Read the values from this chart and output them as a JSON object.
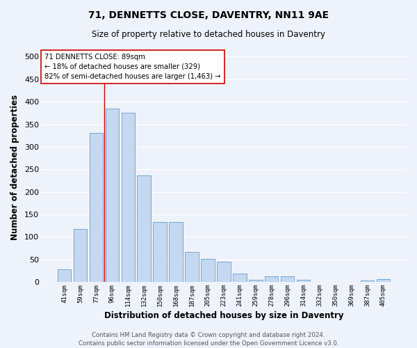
{
  "title1": "71, DENNETTS CLOSE, DAVENTRY, NN11 9AE",
  "title2": "Size of property relative to detached houses in Daventry",
  "xlabel": "Distribution of detached houses by size in Daventry",
  "ylabel": "Number of detached properties",
  "categories": [
    "41sqm",
    "59sqm",
    "77sqm",
    "96sqm",
    "114sqm",
    "132sqm",
    "150sqm",
    "168sqm",
    "187sqm",
    "205sqm",
    "223sqm",
    "241sqm",
    "259sqm",
    "278sqm",
    "296sqm",
    "314sqm",
    "332sqm",
    "350sqm",
    "369sqm",
    "387sqm",
    "405sqm"
  ],
  "values": [
    28,
    118,
    330,
    385,
    375,
    237,
    133,
    133,
    67,
    51,
    45,
    18,
    5,
    13,
    13,
    5,
    0,
    0,
    0,
    3,
    6
  ],
  "bar_color": "#c5d8f0",
  "bar_edge_color": "#6fa8d6",
  "background_color": "#eef2fa",
  "grid_color": "#ffffff",
  "vline_x_index": 2.5,
  "vline_color": "#cc0000",
  "annotation_text": "71 DENNETTS CLOSE: 89sqm\n← 18% of detached houses are smaller (329)\n82% of semi-detached houses are larger (1,463) →",
  "annotation_box_color": "#ffffff",
  "annotation_box_edge": "#cc0000",
  "ylim": [
    0,
    510
  ],
  "yticks": [
    0,
    50,
    100,
    150,
    200,
    250,
    300,
    350,
    400,
    450,
    500
  ],
  "footer1": "Contains HM Land Registry data © Crown copyright and database right 2024.",
  "footer2": "Contains public sector information licensed under the Open Government Licence v3.0."
}
